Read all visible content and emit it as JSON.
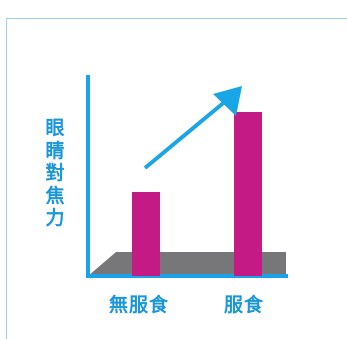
{
  "chart_data": {
    "type": "bar",
    "title": "",
    "categories": [
      "無服食",
      "服食"
    ],
    "values": [
      0.42,
      0.82
    ],
    "ylabel": "眼睛對焦力",
    "xlabel": "",
    "ylim": [
      0,
      1
    ],
    "grid": false,
    "legend": "none"
  },
  "colors": {
    "bar": "#c31a86",
    "axis": "#1aa3e8",
    "floor": "#777779",
    "arrow": "#18a6e6",
    "text": "#1b97d8",
    "frame": "#9fd0ee"
  }
}
